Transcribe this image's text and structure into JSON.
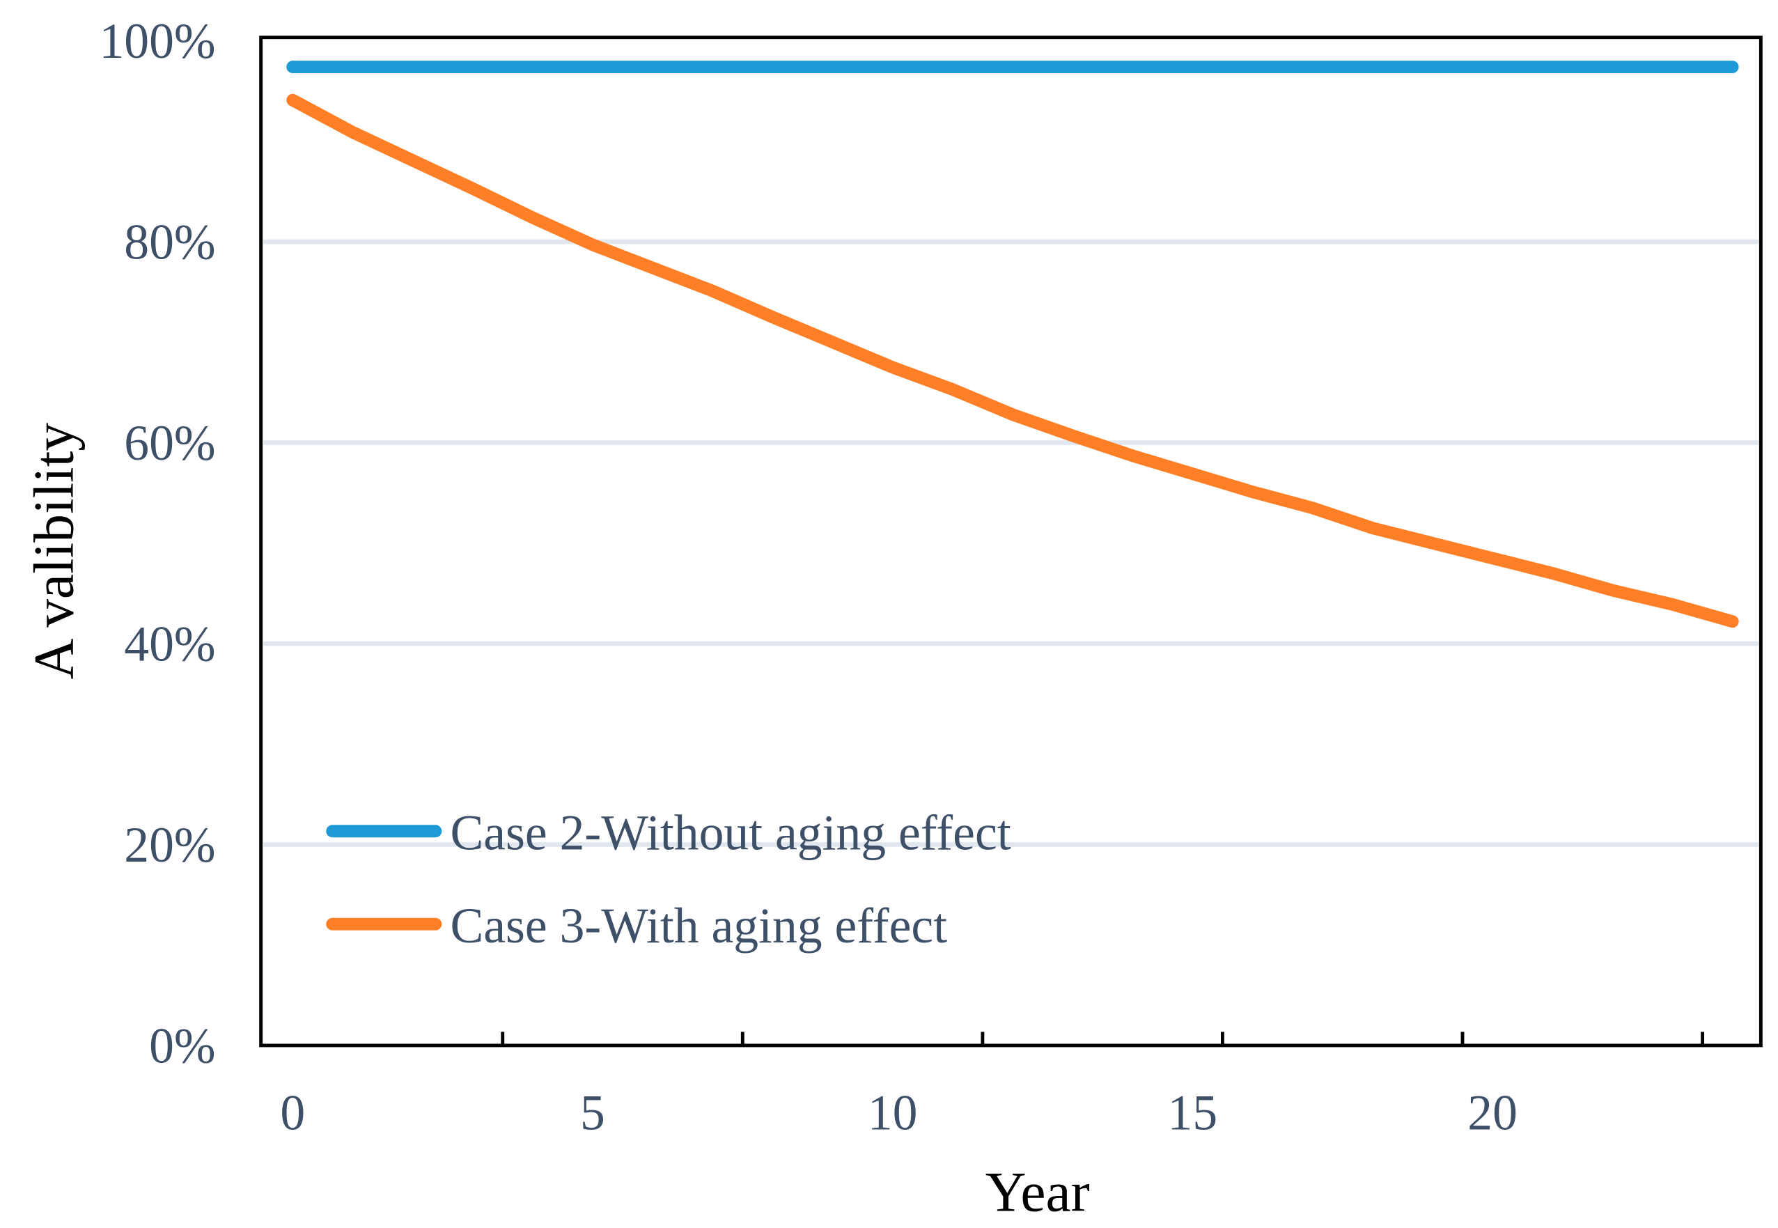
{
  "chart_data": {
    "type": "line",
    "title": "",
    "xlabel": "Year",
    "ylabel": "A valibility",
    "x": [
      0,
      1,
      2,
      3,
      4,
      5,
      6,
      7,
      8,
      9,
      10,
      11,
      12,
      13,
      14,
      15,
      16,
      17,
      18,
      19,
      20,
      21,
      22,
      23,
      24
    ],
    "x_tick_labels": [
      "0",
      "5",
      "10",
      "15",
      "20"
    ],
    "x_tick_values": [
      0,
      5,
      10,
      15,
      20
    ],
    "y_tick_labels": [
      "0%",
      "20%",
      "40%",
      "60%",
      "80%",
      "100%"
    ],
    "y_tick_values": [
      0,
      20,
      40,
      60,
      80,
      100
    ],
    "ylim": [
      0,
      100
    ],
    "xlim": [
      0,
      24
    ],
    "grid": "horizontal",
    "legend_position": "bottom-left",
    "series": [
      {
        "name": "Case 2-Without aging effect",
        "color": "#1e9bd7",
        "values": [
          97.4,
          97.4,
          97.4,
          97.4,
          97.4,
          97.4,
          97.4,
          97.4,
          97.4,
          97.4,
          97.4,
          97.4,
          97.4,
          97.4,
          97.4,
          97.4,
          97.4,
          97.4,
          97.4,
          97.4,
          97.4,
          97.4,
          97.4,
          97.4,
          97.4
        ]
      },
      {
        "name": "Case 3-With aging effect",
        "color": "#fe7f26",
        "values": [
          94.1,
          90.9,
          88.1,
          85.3,
          82.4,
          79.7,
          77.4,
          75.1,
          72.5,
          70.0,
          67.5,
          65.3,
          62.8,
          60.7,
          58.7,
          56.9,
          55.1,
          53.5,
          51.5,
          50.0,
          48.5,
          47.0,
          45.3,
          43.9,
          42.2
        ]
      }
    ]
  }
}
